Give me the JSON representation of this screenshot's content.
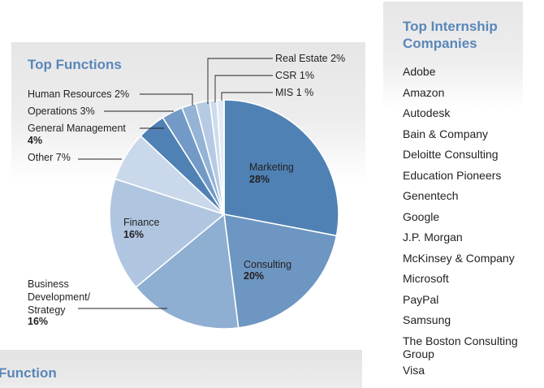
{
  "functions_title": "Top Functions",
  "companies_title": "Top Internship Companies",
  "bottom_partial_label": "Function",
  "companies": [
    "Adobe",
    "Amazon",
    "Autodesk",
    "Bain & Company",
    "Deloitte Consulting",
    "Education Pioneers",
    "Genentech",
    "Google",
    "J.P. Morgan",
    "McKinsey & Company",
    "Microsoft",
    "PayPal",
    "Samsung",
    "The Boston Consulting Group",
    "Visa"
  ],
  "chart_data": {
    "type": "pie",
    "title": "Top Functions",
    "slices": [
      {
        "label": "Marketing",
        "value": 28,
        "display": "28%",
        "color": "#4f81b4"
      },
      {
        "label": "Consulting",
        "value": 20,
        "display": "20%",
        "color": "#6d96c2"
      },
      {
        "label": "Business Development/ Strategy",
        "value": 16,
        "display": "16%",
        "color": "#8eaed2"
      },
      {
        "label": "Finance",
        "value": 16,
        "display": "16%",
        "color": "#b0c6e0"
      },
      {
        "label": "Other",
        "value": 7,
        "display": "7%",
        "color": "#c9d8ea"
      },
      {
        "label": "General Management",
        "value": 4,
        "display": "4%",
        "color": "#4f81b4"
      },
      {
        "label": "Operations",
        "value": 3,
        "display": "3%",
        "color": "#739ac6"
      },
      {
        "label": "Human Resources",
        "value": 2,
        "display": "2%",
        "color": "#94b3d5"
      },
      {
        "label": "Real Estate",
        "value": 2,
        "display": "2%",
        "color": "#b6cbe3"
      },
      {
        "label": "CSR",
        "value": 1,
        "display": "1%",
        "color": "#cddcec"
      },
      {
        "label": "MIS",
        "value": 1,
        "display": "1 %",
        "color": "#e2eaf4"
      }
    ]
  }
}
